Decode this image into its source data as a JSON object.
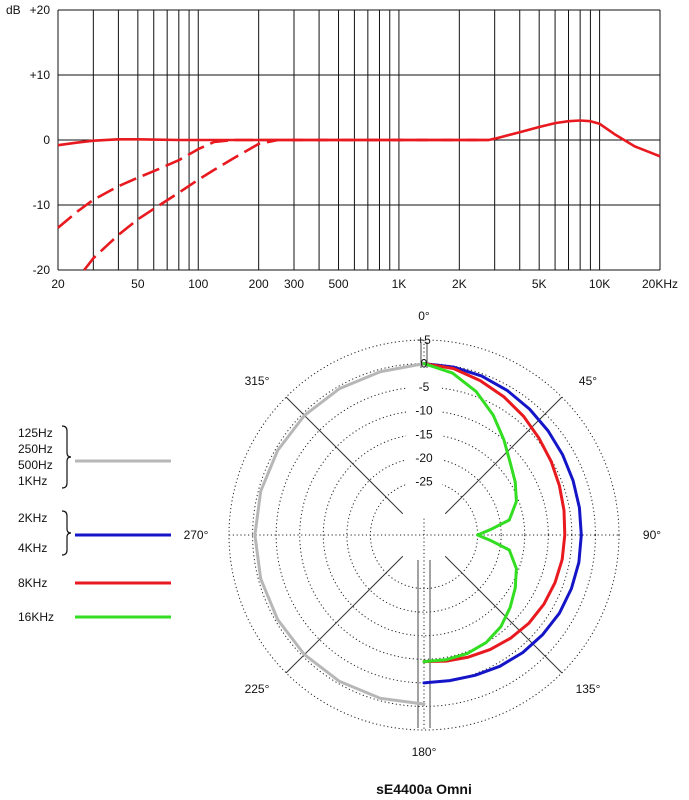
{
  "chart_data": [
    {
      "type": "line",
      "x_scale": "log",
      "x_tick_labels": [
        "20",
        "50",
        "100",
        "200",
        "300",
        "500",
        "1K",
        "2K",
        "5K",
        "10K",
        "20KHz"
      ],
      "x_tick_values": [
        20,
        50,
        100,
        200,
        300,
        500,
        1000,
        2000,
        5000,
        10000,
        20000
      ],
      "y_tick_labels": [
        "+20",
        "+10",
        "0",
        "-10",
        "-20"
      ],
      "y_tick_values": [
        20,
        10,
        0,
        -10,
        -20
      ],
      "ylabel": "dB",
      "xlim": [
        20,
        20000
      ],
      "ylim": [
        -20,
        20
      ],
      "grid": true,
      "series": [
        {
          "style": "solid",
          "color": "#e8191f",
          "x": [
            20,
            25,
            30,
            40,
            50,
            80,
            100,
            150,
            200,
            300,
            500,
            1000,
            2000,
            2800,
            3000,
            4000,
            5000,
            6000,
            7000,
            8000,
            9000,
            10000,
            12000,
            15000,
            20000
          ],
          "y": [
            -0.8,
            -0.4,
            -0.1,
            0.1,
            0.1,
            0,
            0,
            0,
            0,
            0,
            0,
            0,
            0,
            0,
            0.2,
            1.2,
            2,
            2.6,
            2.9,
            3,
            2.9,
            2.5,
            0.8,
            -1,
            -2.5
          ]
        },
        {
          "style": "dashed",
          "color": "#e8191f",
          "x": [
            20,
            25,
            30,
            40,
            50,
            60,
            80,
            100,
            120,
            150,
            200,
            300,
            1000,
            2800
          ],
          "y": [
            -13.5,
            -11,
            -9.2,
            -7.1,
            -5.8,
            -4.8,
            -3.1,
            -1.4,
            -0.3,
            0,
            0,
            0,
            0,
            0
          ]
        },
        {
          "style": "dashed",
          "color": "#e8191f",
          "x": [
            27,
            30,
            40,
            50,
            60,
            80,
            100,
            120,
            150,
            200,
            250,
            300,
            1000,
            2800
          ],
          "y": [
            -20,
            -18.2,
            -14.6,
            -12.2,
            -10.6,
            -8.1,
            -6.1,
            -4.6,
            -2.8,
            -0.6,
            0,
            0,
            0,
            0
          ]
        }
      ]
    },
    {
      "type": "polar",
      "title": "sE4400a Omni",
      "angle_labels": [
        "0°",
        "45°",
        "90°",
        "135°",
        "180°",
        "225°",
        "270°",
        "315°"
      ],
      "angle_values": [
        0,
        45,
        90,
        135,
        180,
        225,
        270,
        315
      ],
      "r_tick_labels": [
        "+5",
        "0",
        "-5",
        "-10",
        "-15",
        "-20",
        "-25"
      ],
      "r_tick_values": [
        5,
        0,
        -5,
        -10,
        -15,
        -20,
        -25
      ],
      "r_range": [
        -30,
        5
      ],
      "series": [
        {
          "legend": [
            "125Hz",
            "250Hz",
            "500Hz",
            "1KHz"
          ],
          "color": "#b7b7b7",
          "angles": [
            180,
            195,
            210,
            225,
            240,
            255,
            270,
            285,
            300,
            315,
            330,
            345,
            360
          ],
          "values": [
            -0.5,
            -0.5,
            -0.5,
            -0.5,
            -0.5,
            -0.5,
            -0.5,
            -0.5,
            -0.5,
            -0.5,
            -0.5,
            -0.5,
            0
          ]
        },
        {
          "legend": [
            "2KHz",
            "4KHz"
          ],
          "color": "#1515c8",
          "angles": [
            0,
            10,
            20,
            30,
            40,
            50,
            60,
            70,
            80,
            90,
            100,
            110,
            120,
            130,
            140,
            150,
            160,
            170,
            180
          ],
          "values": [
            0,
            -0.2,
            -0.5,
            -1,
            -1.5,
            -2,
            -2.4,
            -2.7,
            -2.9,
            -3,
            -3,
            -3.1,
            -3.2,
            -3.5,
            -3.8,
            -4.2,
            -4.7,
            -5,
            -5
          ]
        },
        {
          "legend": [
            "8KHz"
          ],
          "color": "#e8191f",
          "angles": [
            0,
            10,
            20,
            30,
            40,
            50,
            60,
            70,
            80,
            90,
            100,
            110,
            120,
            130,
            140,
            150,
            160,
            170,
            180
          ],
          "values": [
            0,
            -0.5,
            -1.5,
            -2.5,
            -3.5,
            -4.5,
            -5.2,
            -5.8,
            -6.2,
            -6.5,
            -6.6,
            -6.8,
            -7,
            -7.3,
            -7.8,
            -8.3,
            -8.8,
            -9.2,
            -9.5
          ]
        },
        {
          "legend": [
            "16KHz"
          ],
          "color": "#33dd22",
          "angles": [
            0,
            10,
            20,
            30,
            40,
            50,
            60,
            70,
            80,
            85,
            90,
            95,
            100,
            110,
            120,
            130,
            140,
            150,
            160,
            170,
            180
          ],
          "values": [
            0,
            -1.5,
            -4,
            -7,
            -10,
            -12.5,
            -14,
            -15.5,
            -18,
            -22,
            -25,
            -22,
            -18,
            -15.5,
            -14,
            -12.5,
            -11,
            -10,
            -9.6,
            -9.5,
            -9.5
          ]
        }
      ]
    }
  ]
}
